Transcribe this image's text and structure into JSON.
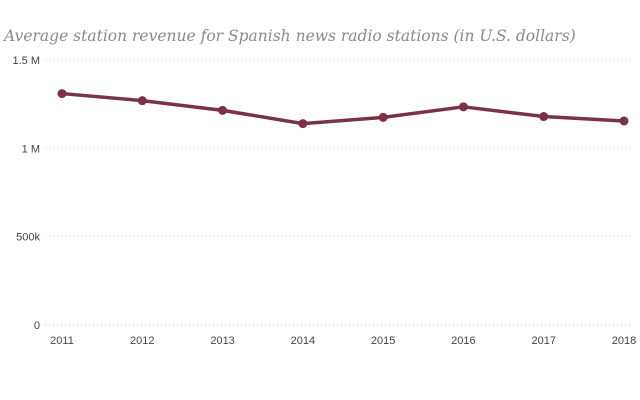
{
  "chart_data": {
    "type": "line",
    "title": "Average station revenue for Spanish news radio stations (in U.S. dollars)",
    "xlabel": "",
    "ylabel": "",
    "categories": [
      "2011",
      "2012",
      "2013",
      "2014",
      "2015",
      "2016",
      "2017",
      "2018"
    ],
    "series": [
      {
        "values": [
          1310000,
          1270000,
          1215000,
          1140000,
          1175000,
          1235000,
          1180000,
          1155000
        ],
        "color": "#7b3343"
      }
    ],
    "ylim": [
      0,
      1500000
    ],
    "yticks": [
      {
        "value": 0,
        "label": "0"
      },
      {
        "value": 500000,
        "label": "500k"
      },
      {
        "value": 1000000,
        "label": "1 M"
      },
      {
        "value": 1500000,
        "label": "1.5 M"
      }
    ],
    "grid": true,
    "legend": "none"
  }
}
